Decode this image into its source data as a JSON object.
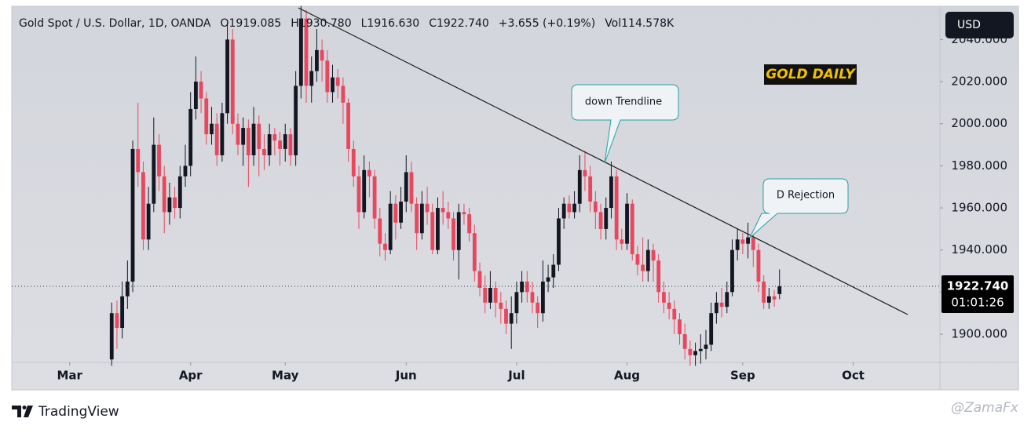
{
  "chart_data": {
    "type": "candlestick",
    "title": "Gold Spot / U.S. Dollar, 1D, OANDA",
    "legend_values": [
      "O1919.085",
      "H1930.780",
      "L1916.630",
      "C1922.740",
      "+3.655 (+0.19%)",
      "Vol114.578K"
    ],
    "currency": "USD",
    "last_price_label": "1922.740",
    "countdown": "01:01:26",
    "annotations": [
      "GOLD DAILY",
      "down Trendline",
      "D Rejection"
    ],
    "brand": "TradingView",
    "watermark": "@ZamaFx",
    "up_color": "#131722",
    "down_color": "#e8475e",
    "xlim": [
      -19,
      157.5
    ],
    "xticks": [
      {
        "value": -8,
        "label": "Mar"
      },
      {
        "value": 15,
        "label": "Apr"
      },
      {
        "value": 33,
        "label": "May"
      },
      {
        "value": 56,
        "label": "Jun"
      },
      {
        "value": 77,
        "label": "Jul"
      },
      {
        "value": 98,
        "label": "Aug"
      },
      {
        "value": 120,
        "label": "Sep"
      },
      {
        "value": 141,
        "label": "Oct"
      }
    ],
    "ylim": [
      1886.6,
      2055.8
    ],
    "yticks": [
      {
        "value": 1900,
        "label": "1900.000"
      },
      {
        "value": 1920,
        "label": "1920.000"
      },
      {
        "value": 1940,
        "label": "1940.000"
      },
      {
        "value": 1960,
        "label": "1960.000"
      },
      {
        "value": 1980,
        "label": "1980.000"
      },
      {
        "value": 2000,
        "label": "2000.000"
      },
      {
        "value": 2020,
        "label": "2020.000"
      },
      {
        "value": 2040,
        "label": "2040.000"
      }
    ],
    "open": [
      1888,
      1910,
      1903,
      1918,
      1925,
      1988,
      1977,
      1945,
      1962,
      1990,
      1975,
      1958,
      1965,
      1960,
      1975,
      1980,
      2007,
      2020,
      2012,
      1995,
      2000,
      1985,
      2005,
      2040,
      2000,
      1990,
      1998,
      1985,
      2000,
      1988,
      1985,
      1995,
      1992,
      1988,
      1995,
      1985,
      2018,
      2050,
      2018,
      2025,
      2035,
      2030,
      2015,
      2022,
      2018,
      2010,
      1988,
      1975,
      1958,
      1978,
      1975,
      1955,
      1943,
      1940,
      1962,
      1953,
      1963,
      1977,
      1962,
      1948,
      1962,
      1958,
      1940,
      1960,
      1958,
      1955,
      1940,
      1958,
      1957,
      1948,
      1930,
      1922,
      1915,
      1922,
      1915,
      1912,
      1905,
      1910,
      1920,
      1925,
      1920,
      1915,
      1910,
      1925,
      1927,
      1933,
      1955,
      1962,
      1958,
      1962,
      1978,
      1975,
      1963,
      1958,
      1950,
      1960,
      1975,
      1945,
      1943,
      1962,
      1938,
      1933,
      1930,
      1940,
      1935,
      1920,
      1915,
      1912,
      1907,
      1900,
      1893,
      1890,
      1892,
      1893,
      1895,
      1910,
      1915,
      1913,
      1920,
      1940,
      1945,
      1943,
      1946,
      1940,
      1925,
      1915,
      1918,
      1919.085
    ],
    "high": [
      1915,
      1916,
      1925,
      1935,
      1992,
      2010,
      1982,
      1970,
      2003,
      1995,
      1980,
      1972,
      1970,
      1980,
      1990,
      2015,
      2032,
      2025,
      2015,
      2008,
      2005,
      2010,
      2048,
      2045,
      2005,
      2003,
      2002,
      2008,
      2004,
      1995,
      2000,
      1998,
      1996,
      2000,
      1998,
      2025,
      2056,
      2054,
      2032,
      2045,
      2040,
      2035,
      2028,
      2026,
      2022,
      2012,
      1992,
      1980,
      1985,
      1982,
      1978,
      1960,
      1948,
      1968,
      1966,
      1970,
      1985,
      1982,
      1965,
      1968,
      1970,
      1962,
      1965,
      1968,
      1963,
      1958,
      1962,
      1962,
      1960,
      1952,
      1934,
      1928,
      1930,
      1925,
      1920,
      1916,
      1918,
      1925,
      1930,
      1930,
      1925,
      1918,
      1935,
      1933,
      1938,
      1960,
      1965,
      1966,
      1968,
      1985,
      1987,
      1980,
      1968,
      1962,
      1965,
      1982,
      1978,
      1950,
      1967,
      1964,
      1942,
      1946,
      1945,
      1943,
      1938,
      1925,
      1920,
      1916,
      1910,
      1905,
      1897,
      1896,
      1900,
      1902,
      1915,
      1920,
      1922,
      1925,
      1945,
      1950,
      1948,
      1953,
      1948,
      1943,
      1928,
      1922,
      1921,
      1930.78
    ],
    "low": [
      1885,
      1893,
      1898,
      1912,
      1920,
      1970,
      1940,
      1940,
      1958,
      1968,
      1948,
      1952,
      1955,
      1955,
      1970,
      1975,
      2002,
      2005,
      1990,
      1990,
      1980,
      1982,
      2000,
      1995,
      1985,
      1980,
      1970,
      1980,
      1975,
      1978,
      1980,
      1985,
      1980,
      1982,
      1980,
      1980,
      2012,
      2010,
      2010,
      2020,
      2020,
      2010,
      2010,
      2012,
      2000,
      1982,
      1970,
      1950,
      1955,
      1965,
      1950,
      1937,
      1935,
      1938,
      1945,
      1950,
      1958,
      1958,
      1940,
      1945,
      1952,
      1938,
      1938,
      1952,
      1950,
      1935,
      1926,
      1952,
      1944,
      1925,
      1918,
      1910,
      1912,
      1908,
      1905,
      1900,
      1893,
      1905,
      1915,
      1915,
      1910,
      1903,
      1906,
      1920,
      1922,
      1930,
      1950,
      1955,
      1955,
      1958,
      1968,
      1958,
      1950,
      1945,
      1945,
      1955,
      1940,
      1940,
      1940,
      1935,
      1928,
      1925,
      1925,
      1925,
      1915,
      1910,
      1907,
      1900,
      1895,
      1888,
      1885,
      1885,
      1886,
      1888,
      1892,
      1905,
      1908,
      1910,
      1918,
      1935,
      1938,
      1936,
      1932,
      1920,
      1912,
      1912,
      1913,
      1916.63
    ],
    "close": [
      1910,
      1903,
      1918,
      1925,
      1988,
      1977,
      1945,
      1962,
      1990,
      1975,
      1958,
      1965,
      1960,
      1975,
      1980,
      2007,
      2020,
      2012,
      1995,
      2000,
      1985,
      2005,
      2040,
      2000,
      1990,
      1998,
      1985,
      2000,
      1988,
      1985,
      1995,
      1992,
      1988,
      1995,
      1985,
      2018,
      2050,
      2018,
      2025,
      2035,
      2030,
      2015,
      2022,
      2018,
      2010,
      1988,
      1975,
      1958,
      1978,
      1975,
      1955,
      1943,
      1940,
      1962,
      1953,
      1963,
      1977,
      1962,
      1948,
      1962,
      1958,
      1940,
      1960,
      1958,
      1955,
      1940,
      1958,
      1957,
      1948,
      1930,
      1922,
      1915,
      1922,
      1915,
      1912,
      1905,
      1910,
      1920,
      1925,
      1920,
      1915,
      1910,
      1925,
      1927,
      1933,
      1955,
      1962,
      1958,
      1962,
      1978,
      1975,
      1963,
      1958,
      1950,
      1960,
      1975,
      1945,
      1943,
      1962,
      1938,
      1933,
      1930,
      1940,
      1935,
      1920,
      1915,
      1912,
      1907,
      1900,
      1893,
      1890,
      1892,
      1893,
      1895,
      1910,
      1915,
      1913,
      1920,
      1940,
      1945,
      1943,
      1946,
      1940,
      1925,
      1915,
      1918,
      1916.5,
      1922.74
    ]
  }
}
